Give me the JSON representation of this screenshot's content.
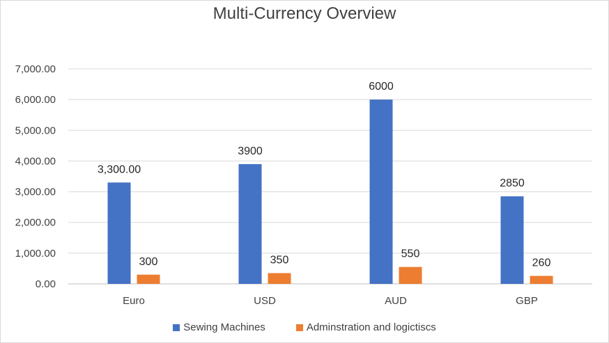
{
  "chart_data": {
    "type": "bar",
    "title": "Multi-Currency Overview",
    "categories": [
      "Euro",
      "USD",
      "AUD",
      "GBP"
    ],
    "series": [
      {
        "name": "Sewing Machines",
        "color": "#4472c4",
        "values": [
          3300,
          3900,
          6000,
          2850
        ],
        "labels": [
          "3,300.00",
          "3900",
          "6000",
          "2850"
        ]
      },
      {
        "name": "Adminstration and logictiscs",
        "color": "#ed7d31",
        "values": [
          300,
          350,
          550,
          260
        ],
        "labels": [
          "300",
          "350",
          "550",
          "260"
        ]
      }
    ],
    "ylim": [
      0,
      7000
    ],
    "yticks": [
      0,
      1000,
      2000,
      3000,
      4000,
      5000,
      6000,
      7000
    ],
    "ytick_labels": [
      "0.00",
      "1,000.00",
      "2,000.00",
      "3,000.00",
      "4,000.00",
      "5,000.00",
      "6,000.00",
      "7,000.00"
    ],
    "grid": true,
    "legend_position": "bottom"
  }
}
